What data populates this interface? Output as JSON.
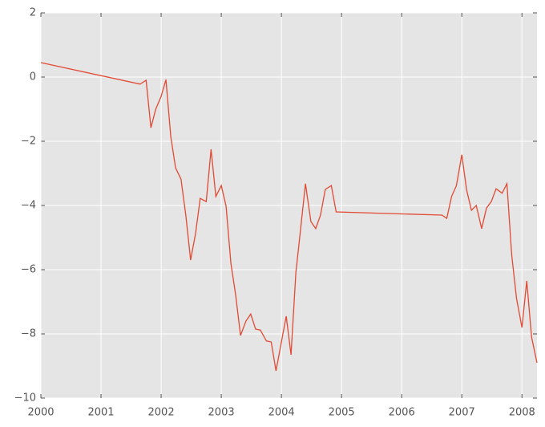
{
  "chart_data": {
    "type": "line",
    "x": [
      2000.0,
      2001.65,
      2001.75,
      2001.83,
      2001.91,
      2002.0,
      2002.08,
      2002.16,
      2002.24,
      2002.33,
      2002.41,
      2002.49,
      2002.57,
      2002.65,
      2002.75,
      2002.83,
      2002.91,
      2003.0,
      2003.08,
      2003.16,
      2003.24,
      2003.32,
      2003.41,
      2003.49,
      2003.57,
      2003.65,
      2003.75,
      2003.83,
      2003.91,
      2004.0,
      2004.08,
      2004.16,
      2004.24,
      2004.32,
      2004.4,
      2004.49,
      2004.57,
      2004.65,
      2004.73,
      2004.83,
      2004.91,
      2006.67,
      2006.75,
      2006.83,
      2006.91,
      2007.0,
      2007.08,
      2007.16,
      2007.24,
      2007.33,
      2007.41,
      2007.49,
      2007.57,
      2007.67,
      2007.75,
      2007.83,
      2007.91,
      2008.0,
      2008.08,
      2008.16,
      2008.25
    ],
    "series": [
      {
        "color": "#e24a33",
        "values": [
          0.45,
          -0.22,
          -0.1,
          -1.58,
          -1.0,
          -0.6,
          -0.08,
          -1.85,
          -2.83,
          -3.18,
          -4.3,
          -5.7,
          -4.9,
          -3.78,
          -3.88,
          -2.25,
          -3.72,
          -3.38,
          -4.02,
          -5.8,
          -6.8,
          -8.05,
          -7.6,
          -7.38,
          -7.85,
          -7.88,
          -8.22,
          -8.25,
          -9.15,
          -8.25,
          -7.45,
          -8.65,
          -6.1,
          -4.72,
          -3.32,
          -4.5,
          -4.72,
          -4.3,
          -3.5,
          -3.38,
          -4.2,
          -4.3,
          -4.4,
          -3.72,
          -3.38,
          -2.42,
          -3.52,
          -4.15,
          -4.0,
          -4.72,
          -4.08,
          -3.88,
          -3.48,
          -3.62,
          -3.32,
          -5.55,
          -6.9,
          -7.8,
          -6.35,
          -8.1,
          -8.9
        ]
      }
    ],
    "xlim": [
      2000,
      2008.25
    ],
    "xticks": [
      2000,
      2001,
      2002,
      2003,
      2004,
      2005,
      2006,
      2007,
      2008
    ],
    "ylim": [
      -10,
      2
    ],
    "yticks": [
      {
        "value": -10,
        "label": "−10"
      },
      {
        "value": -8,
        "label": "−8"
      },
      {
        "value": -6,
        "label": "−6"
      },
      {
        "value": -4,
        "label": "−4"
      },
      {
        "value": -2,
        "label": "−2"
      },
      0,
      2
    ],
    "grid": true
  }
}
